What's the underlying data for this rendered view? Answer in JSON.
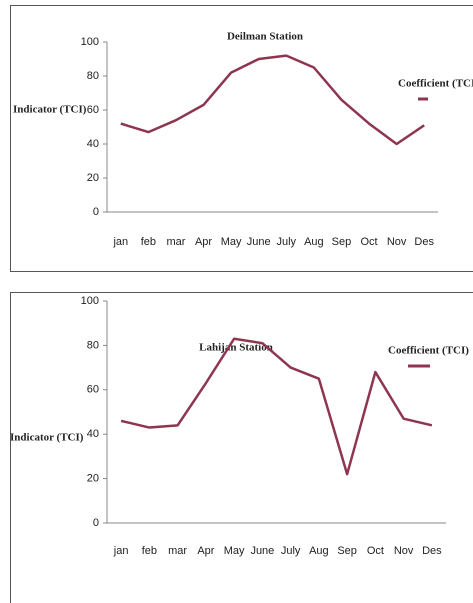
{
  "chart_data": [
    {
      "type": "line",
      "title": "Deilman Station",
      "y_label": "Indicator (TCI)",
      "categories": [
        "jan",
        "feb",
        "mar",
        "Apr",
        "May",
        "June",
        "July",
        "Aug",
        "Sep",
        "Oct",
        "Nov",
        "Des"
      ],
      "series": [
        {
          "name": "Coefficient (TCI)",
          "color": "#8e3550",
          "values": [
            52,
            47,
            54,
            63,
            82,
            90,
            92,
            85,
            66,
            52,
            40,
            51
          ]
        }
      ],
      "ylim": [
        0,
        100
      ],
      "yticks": [
        0,
        20,
        40,
        60,
        80,
        100
      ]
    },
    {
      "type": "line",
      "title": "Lahijan Station",
      "y_label": "Indicator (TCI)",
      "categories": [
        "jan",
        "feb",
        "mar",
        "Apr",
        "May",
        "June",
        "July",
        "Aug",
        "Sep",
        "Oct",
        "Nov",
        "Des"
      ],
      "series": [
        {
          "name": "Coefficient (TCI)",
          "color": "#8e3550",
          "values": [
            46,
            43,
            44,
            63,
            83,
            81,
            70,
            65,
            22,
            68,
            47,
            44
          ]
        }
      ],
      "ylim": [
        0,
        100
      ],
      "yticks": [
        0,
        20,
        40,
        60,
        80,
        100
      ]
    }
  ]
}
